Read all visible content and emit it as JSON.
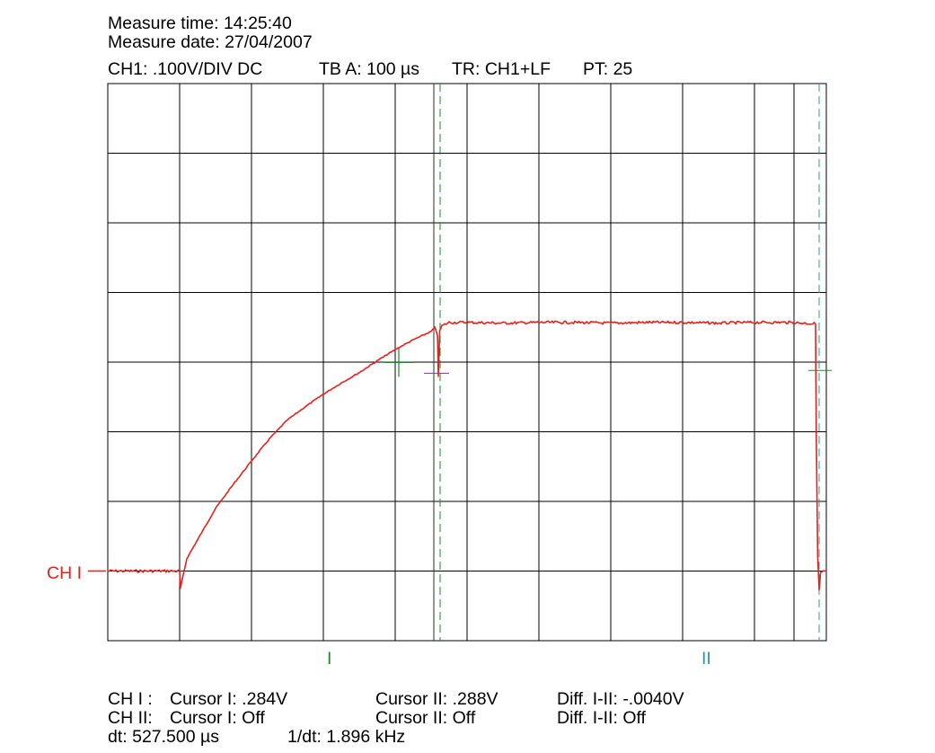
{
  "header": {
    "measure_time": "Measure time: 14:25:40",
    "measure_date": "Measure date: 27/04/2007",
    "ch1_setting": "CH1: .100V/DIV DC",
    "timebase": "TB A: 100 µs",
    "trigger": "TR: CH1+LF",
    "pretrigger": "PT: 25"
  },
  "channel_marker": "CH I",
  "cursor_labels": {
    "cursor1": "I",
    "cursor2": "II"
  },
  "readouts": {
    "row1": {
      "channel": "CH I :",
      "cursor1": "Cursor I: .284V",
      "cursor2": "Cursor II: .288V",
      "diff": "Diff. I-II: -.0040V"
    },
    "row2": {
      "channel": "CH II:",
      "cursor1": "Cursor I: Off",
      "cursor2": "Cursor II: Off",
      "diff": "Diff. I-II: Off"
    },
    "row3": {
      "dt": "dt: 527.500 µs",
      "inv_dt": "1/dt: 1.896 kHz"
    }
  },
  "colors": {
    "trace": "#e8201c",
    "grid": "#000000",
    "cursor1": "#1a8a2a",
    "cursor2": "#2a9aa6"
  },
  "chart_data": {
    "type": "line",
    "x_unit": "µs",
    "y_unit": "V",
    "x_per_div": 100,
    "y_per_div": 0.1,
    "xlim": [
      -250,
      750
    ],
    "ylim": [
      -0.1,
      0.7
    ],
    "grid": true,
    "cursors": [
      {
        "name": "I",
        "x": 212.5,
        "y": 0.284
      },
      {
        "name": "II",
        "x": 740,
        "y": 0.288
      }
    ],
    "series": [
      {
        "name": "CH I",
        "x": [
          -250,
          -150,
          -149,
          -140,
          -125,
          -100,
          -75,
          -50,
          -25,
          0,
          25,
          50,
          75,
          100,
          125,
          150,
          175,
          200,
          205,
          209,
          210,
          212,
          215,
          225,
          250,
          300,
          350,
          400,
          450,
          500,
          550,
          600,
          650,
          700,
          735,
          736,
          738,
          740,
          742,
          750
        ],
        "y": [
          0,
          0,
          -0.025,
          0.018,
          0.045,
          0.09,
          0.125,
          0.158,
          0.19,
          0.217,
          0.236,
          0.254,
          0.27,
          0.285,
          0.302,
          0.318,
          0.332,
          0.344,
          0.35,
          0.338,
          0.28,
          0.345,
          0.352,
          0.357,
          0.357,
          0.356,
          0.357,
          0.357,
          0.356,
          0.357,
          0.357,
          0.356,
          0.357,
          0.357,
          0.355,
          0.2,
          0.02,
          -0.027,
          -0.002,
          0
        ]
      }
    ]
  }
}
